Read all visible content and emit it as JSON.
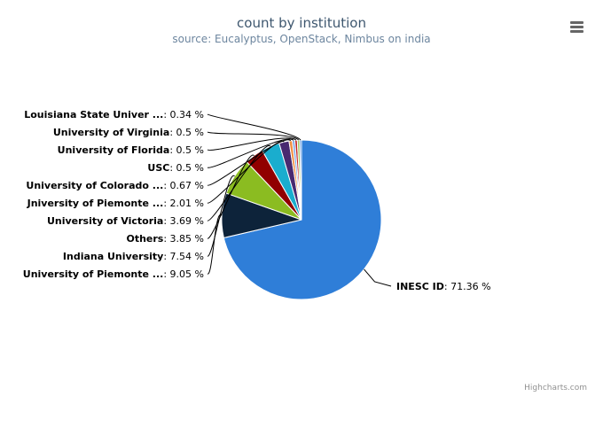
{
  "chart_data": {
    "type": "pie",
    "title": "count by institution",
    "subtitle": "source: Eucalyptus, OpenStack, Nimbus on india",
    "series": [
      {
        "name": "INESC ID",
        "label": "INESC ID",
        "value": 71.36,
        "value_text": "71.36 %",
        "color": "#2f7ed8"
      },
      {
        "name": "University of Piemonte ...",
        "label": "University of Piemonte ...",
        "value": 9.05,
        "value_text": "9.05 %",
        "color": "#0d233a"
      },
      {
        "name": "Indiana University",
        "label": "Indiana University",
        "value": 7.54,
        "value_text": "7.54 %",
        "color": "#8bbc21"
      },
      {
        "name": "Others",
        "label": "Others",
        "value": 3.85,
        "value_text": "3.85 %",
        "color": "#910000"
      },
      {
        "name": "University of Victoria",
        "label": "University of Victoria",
        "value": 3.69,
        "value_text": "3.69 %",
        "color": "#1aadce"
      },
      {
        "name": "University of Piemonte ...",
        "label": "Jniversity of Piemonte ...",
        "value": 2.01,
        "value_text": "2.01 %",
        "color": "#492970"
      },
      {
        "name": "University of Colorado ...",
        "label": "University of Colorado ...",
        "value": 0.67,
        "value_text": "0.67 %",
        "color": "#f28f43"
      },
      {
        "name": "USC",
        "label": "USC",
        "value": 0.5,
        "value_text": "0.5 %",
        "color": "#77a1e5"
      },
      {
        "name": "University of Florida",
        "label": "University of Florida",
        "value": 0.5,
        "value_text": "0.5 %",
        "color": "#c42525"
      },
      {
        "name": "University of Virginia",
        "label": "University of Virginia",
        "value": 0.5,
        "value_text": "0.5 %",
        "color": "#a6c96a"
      },
      {
        "name": "Louisiana State Univer ...",
        "label": "Louisiana State Univer ...",
        "value": 0.34,
        "value_text": "0.34 %",
        "color": "#2f7ed8"
      }
    ]
  },
  "credits": "Highcharts.com",
  "menu_icon": "hamburger-menu-icon"
}
